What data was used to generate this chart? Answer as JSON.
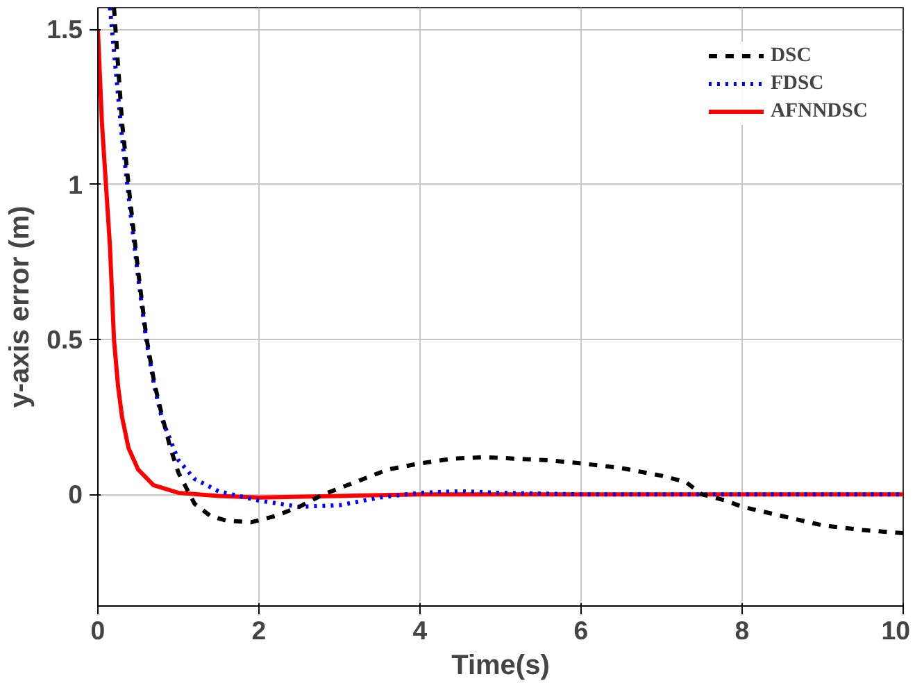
{
  "chart_data": {
    "type": "line",
    "xlabel": "Time(s)",
    "ylabel": "y-axis error (m)",
    "xlim": [
      0,
      10
    ],
    "ylim": [
      -0.36,
      1.57
    ],
    "xticks": [
      0,
      2,
      4,
      6,
      8,
      10
    ],
    "yticks": [
      0,
      0.5,
      1,
      1.5
    ],
    "grid": true,
    "legend": "top right",
    "series": [
      {
        "name": "DSC",
        "color": "#000000",
        "line_style": "dashed",
        "x": [
          0.2,
          0.3,
          0.4,
          0.5,
          0.6,
          0.7,
          0.8,
          0.9,
          1.0,
          1.2,
          1.4,
          1.6,
          1.9,
          2.2,
          2.5,
          2.8,
          3.2,
          3.6,
          4.0,
          4.4,
          4.8,
          5.2,
          5.6,
          6.0,
          6.5,
          7.0,
          7.3,
          7.5,
          7.8,
          8.0,
          8.5,
          9.0,
          9.5,
          10.0
        ],
        "values": [
          1.57,
          1.2,
          0.95,
          0.72,
          0.51,
          0.36,
          0.25,
          0.15,
          0.07,
          -0.03,
          -0.07,
          -0.085,
          -0.09,
          -0.07,
          -0.04,
          0.0,
          0.04,
          0.08,
          0.1,
          0.115,
          0.12,
          0.115,
          0.11,
          0.1,
          0.085,
          0.06,
          0.04,
          0.0,
          -0.02,
          -0.04,
          -0.07,
          -0.1,
          -0.115,
          -0.125
        ]
      },
      {
        "name": "FDSC",
        "color": "#0000ff",
        "line_style": "dotted",
        "x": [
          0.15,
          0.3,
          0.4,
          0.5,
          0.6,
          0.7,
          0.8,
          1.0,
          1.2,
          1.5,
          2.0,
          2.5,
          3.0,
          3.5,
          4.0,
          4.5,
          5.0,
          6.0,
          7.0,
          8.0,
          9.0,
          10.0
        ],
        "values": [
          1.57,
          1.15,
          0.92,
          0.7,
          0.5,
          0.35,
          0.24,
          0.11,
          0.05,
          0.01,
          -0.02,
          -0.04,
          -0.035,
          -0.01,
          0.005,
          0.01,
          0.005,
          0.0,
          0.0,
          0.0,
          0.0,
          0.0
        ]
      },
      {
        "name": "AFNNDSC",
        "color": "#ff0000",
        "line_style": "solid",
        "x": [
          0.0,
          0.05,
          0.1,
          0.15,
          0.2,
          0.25,
          0.3,
          0.38,
          0.5,
          0.69,
          1.0,
          1.5,
          2.0,
          3.0,
          4.0,
          5.0,
          6.0,
          7.0,
          8.0,
          9.0,
          10.0
        ],
        "values": [
          1.5,
          1.2,
          1.0,
          0.8,
          0.5,
          0.35,
          0.25,
          0.15,
          0.08,
          0.03,
          0.005,
          -0.005,
          -0.01,
          -0.005,
          0.0,
          0.0,
          0.0,
          0.0,
          0.0,
          0.0,
          0.0
        ]
      }
    ]
  }
}
